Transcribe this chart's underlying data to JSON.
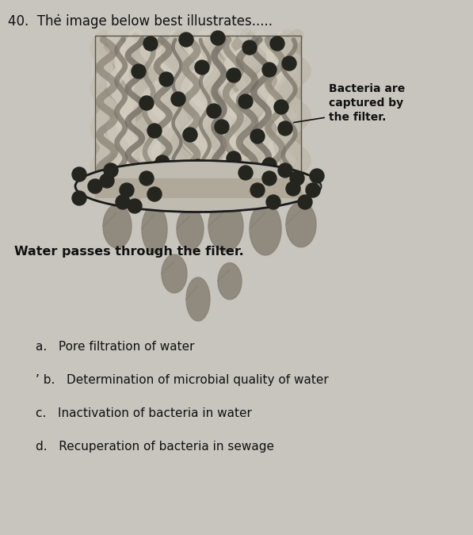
{
  "title": "40.  Thė image below best illustrates.....",
  "title_fontsize": 12,
  "background_color": "#c8c5be",
  "annotation_bacteria": "Bacteria are\ncaptured by\nthe filter.",
  "annotation_water": "Water passes through the filter.",
  "options_a": "a.   Pore filtration of water",
  "options_b": "’ b.   Determination of microbial quality of water",
  "options_c": "c.   Inactivation of bacteria in water",
  "options_d": "d.   Recuperation of bacteria in sewage",
  "filter_bg_color": "#b0a898",
  "filter_fiber_light": "#c8c0b0",
  "filter_fiber_dark": "#7a7268",
  "bacteria_dot_color": "#252520",
  "water_drop_color": "#8a8478",
  "ellipse_fill": "#c0bbb0",
  "ellipse_edge": "#1a1a1a",
  "text_color": "#111111",
  "annotation_fontsize": 10,
  "options_fontsize": 11
}
